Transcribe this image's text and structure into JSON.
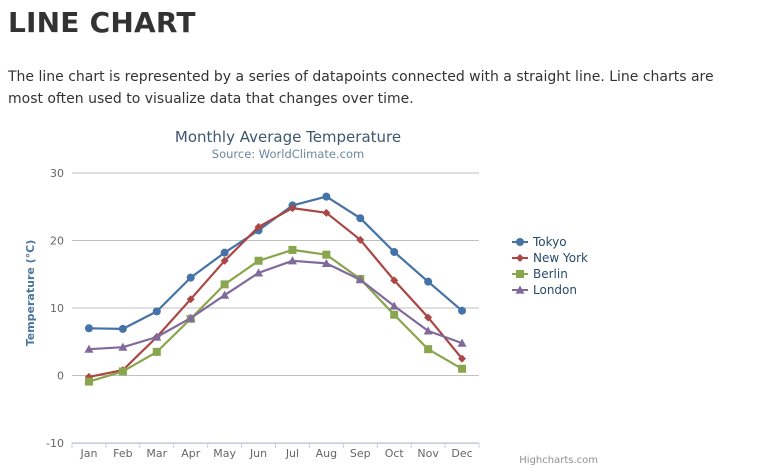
{
  "page": {
    "title": "LINE CHART",
    "description": "The line chart is represented by a series of datapoints connected with a straight line. Line charts are most often used to visualize data that changes over time."
  },
  "chart_data": {
    "type": "line",
    "title": "Monthly Average Temperature",
    "subtitle": "Source: WorldClimate.com",
    "xlabel": "",
    "ylabel": "Temperature (°C)",
    "categories": [
      "Jan",
      "Feb",
      "Mar",
      "Apr",
      "May",
      "Jun",
      "Jul",
      "Aug",
      "Sep",
      "Oct",
      "Nov",
      "Dec"
    ],
    "ylim": [
      -10,
      30
    ],
    "yticks": [
      -10,
      0,
      10,
      20,
      30
    ],
    "grid": true,
    "legend_position": "right",
    "series": [
      {
        "name": "Tokyo",
        "color": "#4572a7",
        "marker": "circle",
        "values": [
          7.0,
          6.9,
          9.5,
          14.5,
          18.2,
          21.5,
          25.2,
          26.5,
          23.3,
          18.3,
          13.9,
          9.6
        ]
      },
      {
        "name": "New York",
        "color": "#aa4643",
        "marker": "diamond",
        "values": [
          -0.2,
          0.8,
          5.7,
          11.3,
          17.0,
          22.0,
          24.8,
          24.1,
          20.1,
          14.1,
          8.6,
          2.5
        ]
      },
      {
        "name": "Berlin",
        "color": "#89a54e",
        "marker": "square",
        "values": [
          -0.9,
          0.6,
          3.5,
          8.4,
          13.5,
          17.0,
          18.6,
          17.9,
          14.3,
          9.0,
          3.9,
          1.0
        ]
      },
      {
        "name": "London",
        "color": "#80699b",
        "marker": "triangle",
        "values": [
          3.9,
          4.2,
          5.7,
          8.5,
          11.9,
          15.2,
          17.0,
          16.6,
          14.2,
          10.3,
          6.6,
          4.8
        ]
      }
    ],
    "credits": "Highcharts.com"
  }
}
